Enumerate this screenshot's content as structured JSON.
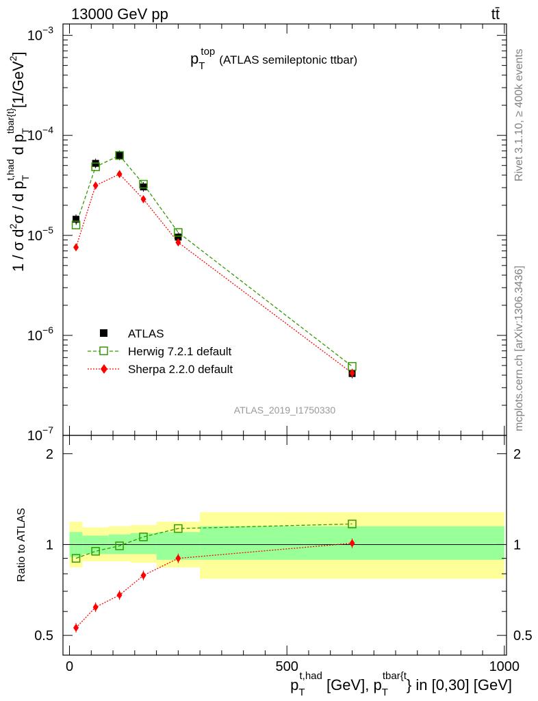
{
  "header": {
    "beam": "13000 GeV pp",
    "process": "tt̄",
    "title_main": "p",
    "title_sub": "T",
    "title_sup": "top",
    "title_rest": "(ATLAS semileptonic ttbar)",
    "watermark": "ATLAS_2019_I1750330"
  },
  "side_text": {
    "top": "Rivet 3.1.10, ≥ 400k events",
    "bottom": "mcplots.cern.ch [arXiv:1306.3436]"
  },
  "axes": {
    "main_ylabel": {
      "a": "1 / σ d",
      "a_sup": "2",
      "b": "σ / d p",
      "b_sub": "T",
      "b_sup": "t,had",
      "c": " d p",
      "c_sub": "T",
      "c_sup": "tbar{t}",
      "d": "[1/GeV",
      "d_sup": "2",
      "e": "]"
    },
    "ratio_ylabel": "Ratio to ATLAS",
    "xlabel": {
      "a": "p",
      "a_sub": "T",
      "a_sup": "t,had",
      "b": " [GeV], p",
      "b_sub": "T",
      "b_sup": "tbar{t",
      "c": "} in [0,30] [GeV]"
    },
    "x_ticks": [
      "0",
      "500",
      "1000"
    ],
    "main_y_ticks": [
      {
        "base": "10",
        "exp": "−3"
      },
      {
        "base": "10",
        "exp": "−4"
      },
      {
        "base": "10",
        "exp": "−5"
      },
      {
        "base": "10",
        "exp": "−6"
      },
      {
        "base": "10",
        "exp": "−7"
      }
    ],
    "ratio_y_ticks": [
      "2",
      "1",
      "0.5"
    ]
  },
  "legend": {
    "atlas": "ATLAS",
    "herwig": "Herwig 7.2.1 default",
    "sherpa": "Sherpa 2.2.0 default"
  },
  "colors": {
    "atlas": "#000000",
    "herwig": "#339900",
    "sherpa": "#ff0000",
    "band_inner": "#99ff99",
    "band_outer": "#ffff99"
  },
  "chart_data": [
    {
      "type": "scatter",
      "x_scale": "linear",
      "y_scale": "log",
      "xlim": [
        -15,
        1005
      ],
      "ylim": [
        1e-07,
        0.0013
      ],
      "x": [
        15,
        60,
        115,
        170,
        250,
        650
      ],
      "series": [
        {
          "name": "ATLAS",
          "values": [
            1.45e-05,
            5.25e-05,
            6.3e-05,
            3.05e-05,
            9.6e-06,
            4.15e-07
          ]
        },
        {
          "name": "Herwig 7.2.1 default",
          "values": [
            1.27e-05,
            4.85e-05,
            6.3e-05,
            3.25e-05,
            1.07e-05,
            4.9e-07
          ]
        },
        {
          "name": "Sherpa 2.2.0 default",
          "values": [
            7.6e-06,
            3.15e-05,
            4.1e-05,
            2.3e-05,
            8.5e-06,
            4.2e-07
          ]
        }
      ]
    },
    {
      "type": "line",
      "x_scale": "linear",
      "y_scale": "log",
      "xlim": [
        -15,
        1005
      ],
      "ylim": [
        0.43,
        2.3
      ],
      "x": [
        15,
        60,
        115,
        170,
        250,
        650
      ],
      "series": [
        {
          "name": "Herwig 7.2.1 default",
          "values": [
            0.9,
            0.95,
            0.99,
            1.06,
            1.13,
            1.17
          ]
        },
        {
          "name": "Sherpa 2.2.0 default",
          "values": [
            0.53,
            0.62,
            0.68,
            0.79,
            0.9,
            1.01
          ]
        }
      ],
      "bands": {
        "bins": [
          0,
          30,
          90,
          140,
          200,
          300,
          1000
        ],
        "outer_lo": [
          0.84,
          0.88,
          0.88,
          0.87,
          0.84,
          0.77
        ],
        "outer_hi": [
          1.19,
          1.14,
          1.15,
          1.16,
          1.19,
          1.28
        ],
        "inner_lo": [
          0.91,
          0.93,
          0.93,
          0.93,
          0.89,
          0.89
        ],
        "inner_hi": [
          1.1,
          1.07,
          1.08,
          1.09,
          1.1,
          1.15
        ]
      }
    }
  ]
}
